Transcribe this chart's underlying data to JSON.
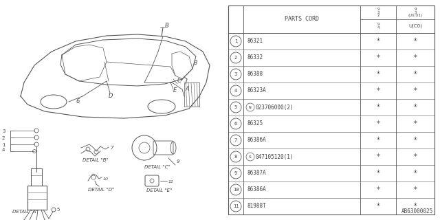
{
  "bg_color": "#ffffff",
  "diagram_code": "AB63000025",
  "table": {
    "rows": [
      {
        "num": "1",
        "part": "86321",
        "c2": "*",
        "c3": "*"
      },
      {
        "num": "2",
        "part": "86332",
        "c2": "*",
        "c3": "*"
      },
      {
        "num": "3",
        "part": "86388",
        "c2": "*",
        "c3": "*"
      },
      {
        "num": "4",
        "part": "86323A",
        "c2": "*",
        "c3": "*"
      },
      {
        "num": "5",
        "part": "023706000(2)",
        "c2": "*",
        "c3": "*",
        "prefix": "N"
      },
      {
        "num": "6",
        "part": "86325",
        "c2": "*",
        "c3": "*"
      },
      {
        "num": "7",
        "part": "86386A",
        "c2": "*",
        "c3": "*"
      },
      {
        "num": "8",
        "part": "047105120(1)",
        "c2": "*",
        "c3": "*",
        "prefix": "S"
      },
      {
        "num": "9",
        "part": "86387A",
        "c2": "*",
        "c3": "*"
      },
      {
        "num": "10",
        "part": "86386A",
        "c2": "*",
        "c3": "*"
      },
      {
        "num": "11",
        "part": "81988T",
        "c2": "*",
        "c3": "*"
      }
    ]
  },
  "lc": "#555555",
  "tc": "#444444"
}
